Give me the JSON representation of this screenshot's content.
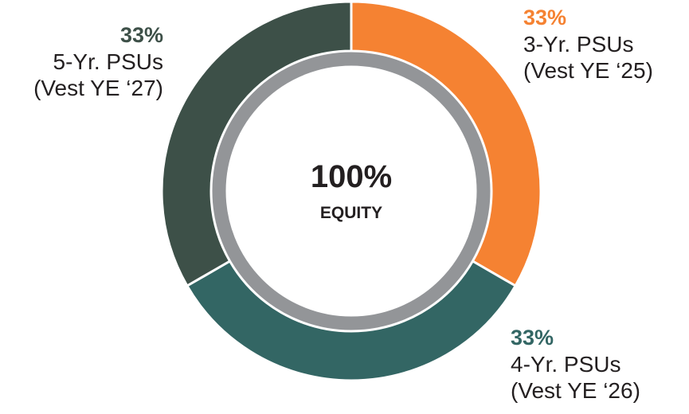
{
  "chart_data": {
    "type": "donut",
    "categories": [
      "3-Yr. PSUs\n(Vest YE ‘25)",
      "4-Yr. PSUs\n(Vest YE ‘26)",
      "5-Yr. PSUs\n(Vest YE ‘27)"
    ],
    "values": [
      33,
      33,
      33
    ],
    "value_labels": [
      "33%",
      "33%",
      "33%"
    ],
    "colors": [
      "#f58232",
      "#336664",
      "#3d5048"
    ],
    "center_label": "100%",
    "center_sublabel": "EQUITY"
  }
}
